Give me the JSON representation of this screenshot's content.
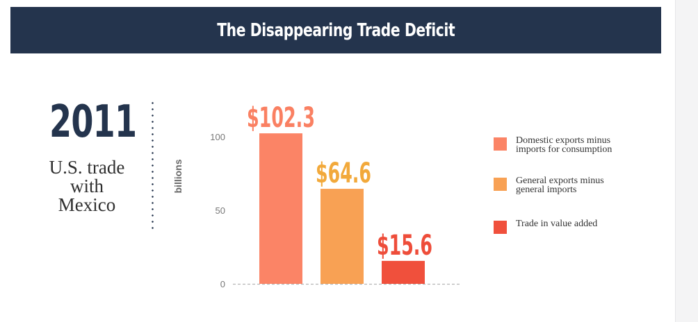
{
  "header": {
    "title": "The Disappearing Trade Deficit"
  },
  "side_panel": {
    "year": "2011",
    "subtitle_lines": [
      "U.S. trade",
      "with",
      "Mexico"
    ]
  },
  "colors": {
    "title_bar": "#24344d",
    "text_dark": "#2f2f2f"
  },
  "chart_data": {
    "type": "bar",
    "categories": [
      "Domestic exports minus imports for consumption",
      "General exports minus general imports",
      "Trade in value added"
    ],
    "values": [
      102.3,
      64.6,
      15.6
    ],
    "data_labels": [
      "$102.3",
      "$64.6",
      "$15.6"
    ],
    "colors": [
      "#fb8466",
      "#f8a154",
      "#f0503c"
    ],
    "label_colors": [
      "#fa8062",
      "#f2a93b",
      "#ee4d3a"
    ],
    "ylabel": "billions",
    "yticks": [
      0,
      50,
      100
    ],
    "ylim": [
      0,
      100
    ],
    "grid": false,
    "legend_position": "right",
    "legend": [
      {
        "line1": "Domestic exports minus",
        "line2": "imports for consumption",
        "color": "#fb8466"
      },
      {
        "line1": "General exports minus",
        "line2": "general imports",
        "color": "#f8a154"
      },
      {
        "line1": "Trade in value added",
        "line2": "",
        "color": "#f0503c"
      }
    ]
  }
}
